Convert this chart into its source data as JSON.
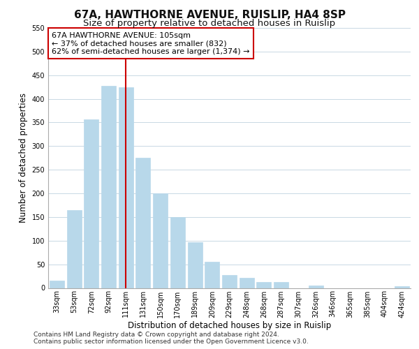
{
  "title": "67A, HAWTHORNE AVENUE, RUISLIP, HA4 8SP",
  "subtitle": "Size of property relative to detached houses in Ruislip",
  "xlabel": "Distribution of detached houses by size in Ruislip",
  "ylabel": "Number of detached properties",
  "categories": [
    "33sqm",
    "53sqm",
    "72sqm",
    "92sqm",
    "111sqm",
    "131sqm",
    "150sqm",
    "170sqm",
    "189sqm",
    "209sqm",
    "229sqm",
    "248sqm",
    "268sqm",
    "287sqm",
    "307sqm",
    "326sqm",
    "346sqm",
    "365sqm",
    "385sqm",
    "404sqm",
    "424sqm"
  ],
  "values": [
    15,
    165,
    357,
    428,
    425,
    276,
    200,
    150,
    96,
    55,
    28,
    22,
    13,
    13,
    0,
    5,
    0,
    0,
    0,
    0,
    3
  ],
  "bar_color": "#b8d8ea",
  "bar_edge_color": "#b8d8ea",
  "vline_x_index": 4,
  "vline_color": "#cc0000",
  "annotation_line1": "67A HAWTHORNE AVENUE: 105sqm",
  "annotation_line2": "← 37% of detached houses are smaller (832)",
  "annotation_line3": "62% of semi-detached houses are larger (1,374) →",
  "annotation_box_color": "#ffffff",
  "annotation_box_edge": "#cc0000",
  "ylim": [
    0,
    550
  ],
  "yticks": [
    0,
    50,
    100,
    150,
    200,
    250,
    300,
    350,
    400,
    450,
    500,
    550
  ],
  "footer1": "Contains HM Land Registry data © Crown copyright and database right 2024.",
  "footer2": "Contains public sector information licensed under the Open Government Licence v3.0.",
  "bg_color": "#ffffff",
  "grid_color": "#c8d8e4",
  "title_fontsize": 11,
  "subtitle_fontsize": 9.5,
  "axis_label_fontsize": 8.5,
  "tick_fontsize": 7,
  "annotation_fontsize": 8,
  "footer_fontsize": 6.5
}
